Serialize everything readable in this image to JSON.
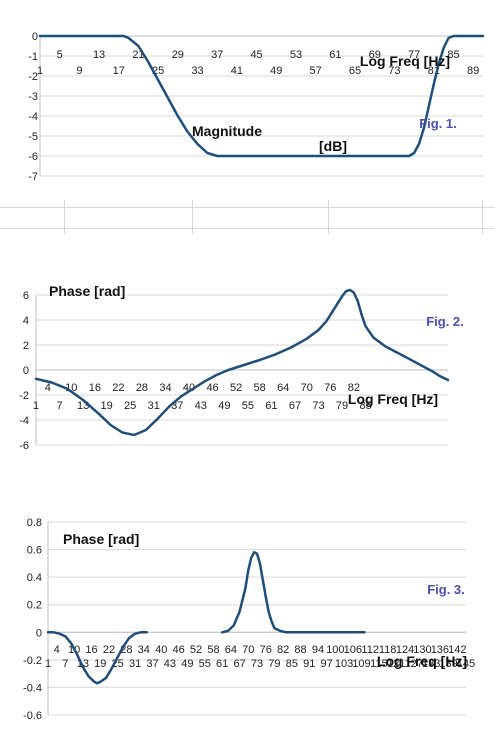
{
  "chart_data": [
    {
      "type": "line",
      "title": "",
      "fig_label": "Fig. 1.",
      "inner_label": "Magnitude",
      "ylabel": "[dB]",
      "xlabel": "Log Freq [Hz]",
      "ylim": [
        -7,
        0
      ],
      "yticks": [
        "0",
        "-1",
        "-2",
        "-3",
        "-4",
        "-5",
        "-6",
        "-7"
      ],
      "xticks_upper": [
        "5",
        "13",
        "21",
        "29",
        "37",
        "45",
        "53",
        "61",
        "69",
        "77",
        "85"
      ],
      "xticks_lower": [
        "1",
        "9",
        "17",
        "25",
        "33",
        "41",
        "49",
        "57",
        "65",
        "73",
        "81",
        "89"
      ],
      "grid": true,
      "series": [
        {
          "values": [
            [
              1,
              0
            ],
            [
              15,
              0
            ],
            [
              18,
              0
            ],
            [
              19,
              -0.1
            ],
            [
              21,
              -0.5
            ],
            [
              23,
              -1.3
            ],
            [
              25,
              -2.2
            ],
            [
              27,
              -3.1
            ],
            [
              29,
              -4.0
            ],
            [
              31,
              -4.8
            ],
            [
              33,
              -5.4
            ],
            [
              35,
              -5.85
            ],
            [
              37,
              -6
            ],
            [
              45,
              -6
            ],
            [
              55,
              -6
            ],
            [
              65,
              -6
            ],
            [
              70,
              -6
            ],
            [
              74,
              -6
            ],
            [
              76,
              -6
            ],
            [
              77,
              -5.85
            ],
            [
              78,
              -5.4
            ],
            [
              79,
              -4.6
            ],
            [
              80,
              -3.5
            ],
            [
              81,
              -2.4
            ],
            [
              82,
              -1.4
            ],
            [
              83,
              -0.6
            ],
            [
              84,
              -0.1
            ],
            [
              85,
              0
            ],
            [
              88,
              0
            ],
            [
              91,
              0
            ]
          ],
          "color": "#1f4e79"
        }
      ]
    },
    {
      "type": "line",
      "title": "",
      "fig_label": "Fig. 2.",
      "inner_label": "Phase [rad]",
      "xlabel": "Log Freq [Hz]",
      "ylim": [
        -6,
        6
      ],
      "yticks": [
        "6",
        "4",
        "2",
        "0",
        "-2",
        "-4",
        "-6"
      ],
      "xticks_upper": [
        "4",
        "10",
        "16",
        "22",
        "28",
        "34",
        "40",
        "46",
        "52",
        "58",
        "64",
        "70",
        "76",
        "82"
      ],
      "xticks_lower": [
        "1",
        "7",
        "13",
        "19",
        "25",
        "31",
        "37",
        "43",
        "49",
        "55",
        "61",
        "67",
        "73",
        "79",
        "85"
      ],
      "grid": true,
      "series": [
        {
          "values": [
            [
              1,
              -0.7
            ],
            [
              5,
              -1.0
            ],
            [
              9,
              -1.5
            ],
            [
              13,
              -2.4
            ],
            [
              17,
              -3.5
            ],
            [
              20,
              -4.4
            ],
            [
              23,
              -5.0
            ],
            [
              26,
              -5.2
            ],
            [
              29,
              -4.8
            ],
            [
              32,
              -3.9
            ],
            [
              35,
              -2.9
            ],
            [
              38,
              -2.1
            ],
            [
              41,
              -1.5
            ],
            [
              44,
              -0.9
            ],
            [
              47,
              -0.4
            ],
            [
              50,
              0.0
            ],
            [
              54,
              0.4
            ],
            [
              58,
              0.8
            ],
            [
              62,
              1.25
            ],
            [
              66,
              1.8
            ],
            [
              70,
              2.5
            ],
            [
              73,
              3.2
            ],
            [
              75,
              3.9
            ],
            [
              77,
              4.9
            ],
            [
              79,
              5.9
            ],
            [
              80,
              6.3
            ],
            [
              81,
              6.4
            ],
            [
              82,
              6.2
            ],
            [
              83,
              5.5
            ],
            [
              84,
              4.4
            ],
            [
              85,
              3.5
            ],
            [
              87,
              2.6
            ],
            [
              90,
              1.9
            ],
            [
              93,
              1.4
            ],
            [
              96,
              0.9
            ],
            [
              99,
              0.4
            ],
            [
              102,
              -0.1
            ],
            [
              104,
              -0.5
            ],
            [
              106,
              -0.8
            ]
          ],
          "color": "#1f4e79"
        }
      ]
    },
    {
      "type": "line",
      "title": "",
      "fig_label": "Fig. 3.",
      "inner_label": "Phase [rad]",
      "xlabel": "Log Freq [Hz]",
      "ylim": [
        -0.6,
        0.8
      ],
      "yticks": [
        "0.8",
        "0.6",
        "0.4",
        "0.2",
        "0",
        "-0.2",
        "-0.4",
        "-0.6"
      ],
      "xticks_upper": [
        "4",
        "10",
        "16",
        "22",
        "28",
        "34",
        "40",
        "46",
        "52",
        "58",
        "64",
        "70",
        "76",
        "82",
        "88",
        "94",
        "100",
        "106",
        "112",
        "118",
        "124",
        "130",
        "136",
        "142"
      ],
      "xticks_lower": [
        "1",
        "7",
        "13",
        "19",
        "25",
        "31",
        "37",
        "43",
        "49",
        "55",
        "61",
        "67",
        "73",
        "79",
        "85",
        "91",
        "97",
        "103",
        "109",
        "115",
        "121",
        "127",
        "133",
        "139",
        "145"
      ],
      "grid": true,
      "series": [
        {
          "values": [
            [
              1,
              0
            ],
            [
              3,
              0
            ],
            [
              5,
              -0.01
            ],
            [
              7,
              -0.03
            ],
            [
              9,
              -0.08
            ],
            [
              11,
              -0.16
            ],
            [
              13,
              -0.25
            ],
            [
              15,
              -0.32
            ],
            [
              17,
              -0.36
            ],
            [
              18,
              -0.37
            ],
            [
              19,
              -0.36
            ],
            [
              21,
              -0.33
            ],
            [
              23,
              -0.26
            ],
            [
              25,
              -0.18
            ],
            [
              27,
              -0.1
            ],
            [
              29,
              -0.04
            ],
            [
              31,
              -0.01
            ],
            [
              33,
              0
            ],
            [
              35,
              0
            ]
          ],
          "color": "#1f4e79"
        },
        {
          "values": [
            [
              61,
              0
            ],
            [
              63,
              0.01
            ],
            [
              65,
              0.05
            ],
            [
              67,
              0.15
            ],
            [
              69,
              0.32
            ],
            [
              70,
              0.45
            ],
            [
              71,
              0.54
            ],
            [
              72,
              0.58
            ],
            [
              73,
              0.57
            ],
            [
              74,
              0.5
            ],
            [
              75,
              0.38
            ],
            [
              76,
              0.26
            ],
            [
              77,
              0.15
            ],
            [
              78,
              0.08
            ],
            [
              79,
              0.03
            ],
            [
              81,
              0.01
            ],
            [
              83,
              0
            ],
            [
              90,
              0
            ],
            [
              100,
              0
            ],
            [
              110,
              0
            ]
          ],
          "color": "#1f4e79"
        }
      ]
    }
  ]
}
